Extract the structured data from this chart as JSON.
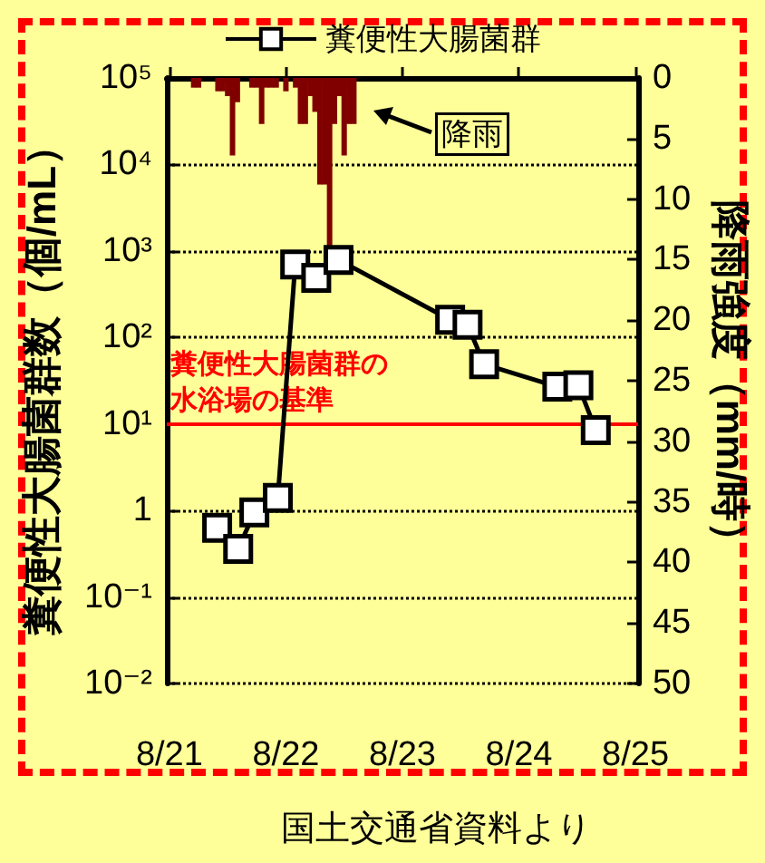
{
  "chart_data": {
    "type": "line",
    "ylabel": "糞便性大腸菌群数（個/mL）",
    "y2label": "降雨強度（mm/時）",
    "xlim": [
      "--08-21",
      "--08-25"
    ],
    "xticks": [
      {
        "value": "--08-21",
        "label": "8/21"
      },
      {
        "value": "--08-22",
        "label": "8/22"
      },
      {
        "value": "--08-23",
        "label": "8/23"
      },
      {
        "value": "--08-24",
        "label": "8/24"
      },
      {
        "value": "--08-25",
        "label": "8/25"
      }
    ],
    "ylim": [
      0.01,
      100000
    ],
    "yticks": [
      {
        "value": 0.01,
        "label": "10⁻²"
      },
      {
        "value": 0.1,
        "label": "10⁻¹"
      },
      1,
      {
        "value": 10,
        "label": "10¹"
      },
      {
        "value": 100,
        "label": "10²"
      },
      {
        "value": 1000,
        "label": "10³"
      },
      {
        "value": 10000,
        "label": "10⁴"
      },
      {
        "value": 100000,
        "label": "10⁵"
      }
    ],
    "y2lim": [
      50,
      0
    ],
    "y2ticks": [
      0,
      5,
      10,
      15,
      20,
      25,
      30,
      35,
      40,
      45,
      50
    ],
    "log": "y",
    "grid": "y",
    "legend": "top",
    "marker": "square",
    "series": [
      {
        "name": "糞便性大腸菌群",
        "color": "#000000",
        "x": [
          "--08-21T09:50",
          "--08-21T14:10",
          "--08-21T17:30",
          "--08-21T22:20",
          "--08-22T01:55",
          "--08-22T06:15",
          "--08-22T10:50",
          "--08-23T09:50",
          "--08-23T13:25",
          "--08-23T16:50",
          "--08-24T07:55",
          "--08-24T12:15",
          "--08-24T15:50"
        ],
        "values": [
          0.63,
          0.36,
          0.95,
          1.4,
          700,
          490,
          790,
          160,
          140,
          49,
          27,
          28,
          8.5
        ]
      },
      {
        "type": "bar",
        "axis": "y2",
        "color": "#800000",
        "x": [
          "--08-21T05:00",
          "--08-21T06:00",
          "--08-21T10:00",
          "--08-21T11:00",
          "--08-21T12:00",
          "--08-21T13:00",
          "--08-21T14:00",
          "--08-21T17:00",
          "--08-21T18:00",
          "--08-21T19:00",
          "--08-21T20:00",
          "--08-21T21:00",
          "--08-21T22:00",
          "--08-22T00:00",
          "--08-22T02:00",
          "--08-22T03:00",
          "--08-22T04:00",
          "--08-22T05:00",
          "--08-22T06:00",
          "--08-22T07:00",
          "--08-22T08:00",
          "--08-22T09:00",
          "--08-22T10:00",
          "--08-22T11:00",
          "--08-22T12:00",
          "--08-22T13:00",
          "--08-22T14:00"
        ],
        "values": [
          0.8,
          0.8,
          1.1,
          1.1,
          1.5,
          6.4,
          2,
          0.8,
          0.8,
          3.8,
          0.8,
          0.8,
          0.8,
          1.1,
          0.8,
          3.8,
          3.8,
          1.5,
          2.8,
          8.8,
          8.8,
          14.2,
          3.8,
          1.5,
          6.4,
          3.8,
          3.8
        ]
      }
    ],
    "ref_lines": [
      {
        "axis": "y",
        "value": 10,
        "label": "糞便性大腸菌群の水浴場の基準",
        "color": "#ff0000"
      }
    ],
    "annotations": [
      "降雨",
      "国土交通省資料より"
    ]
  }
}
